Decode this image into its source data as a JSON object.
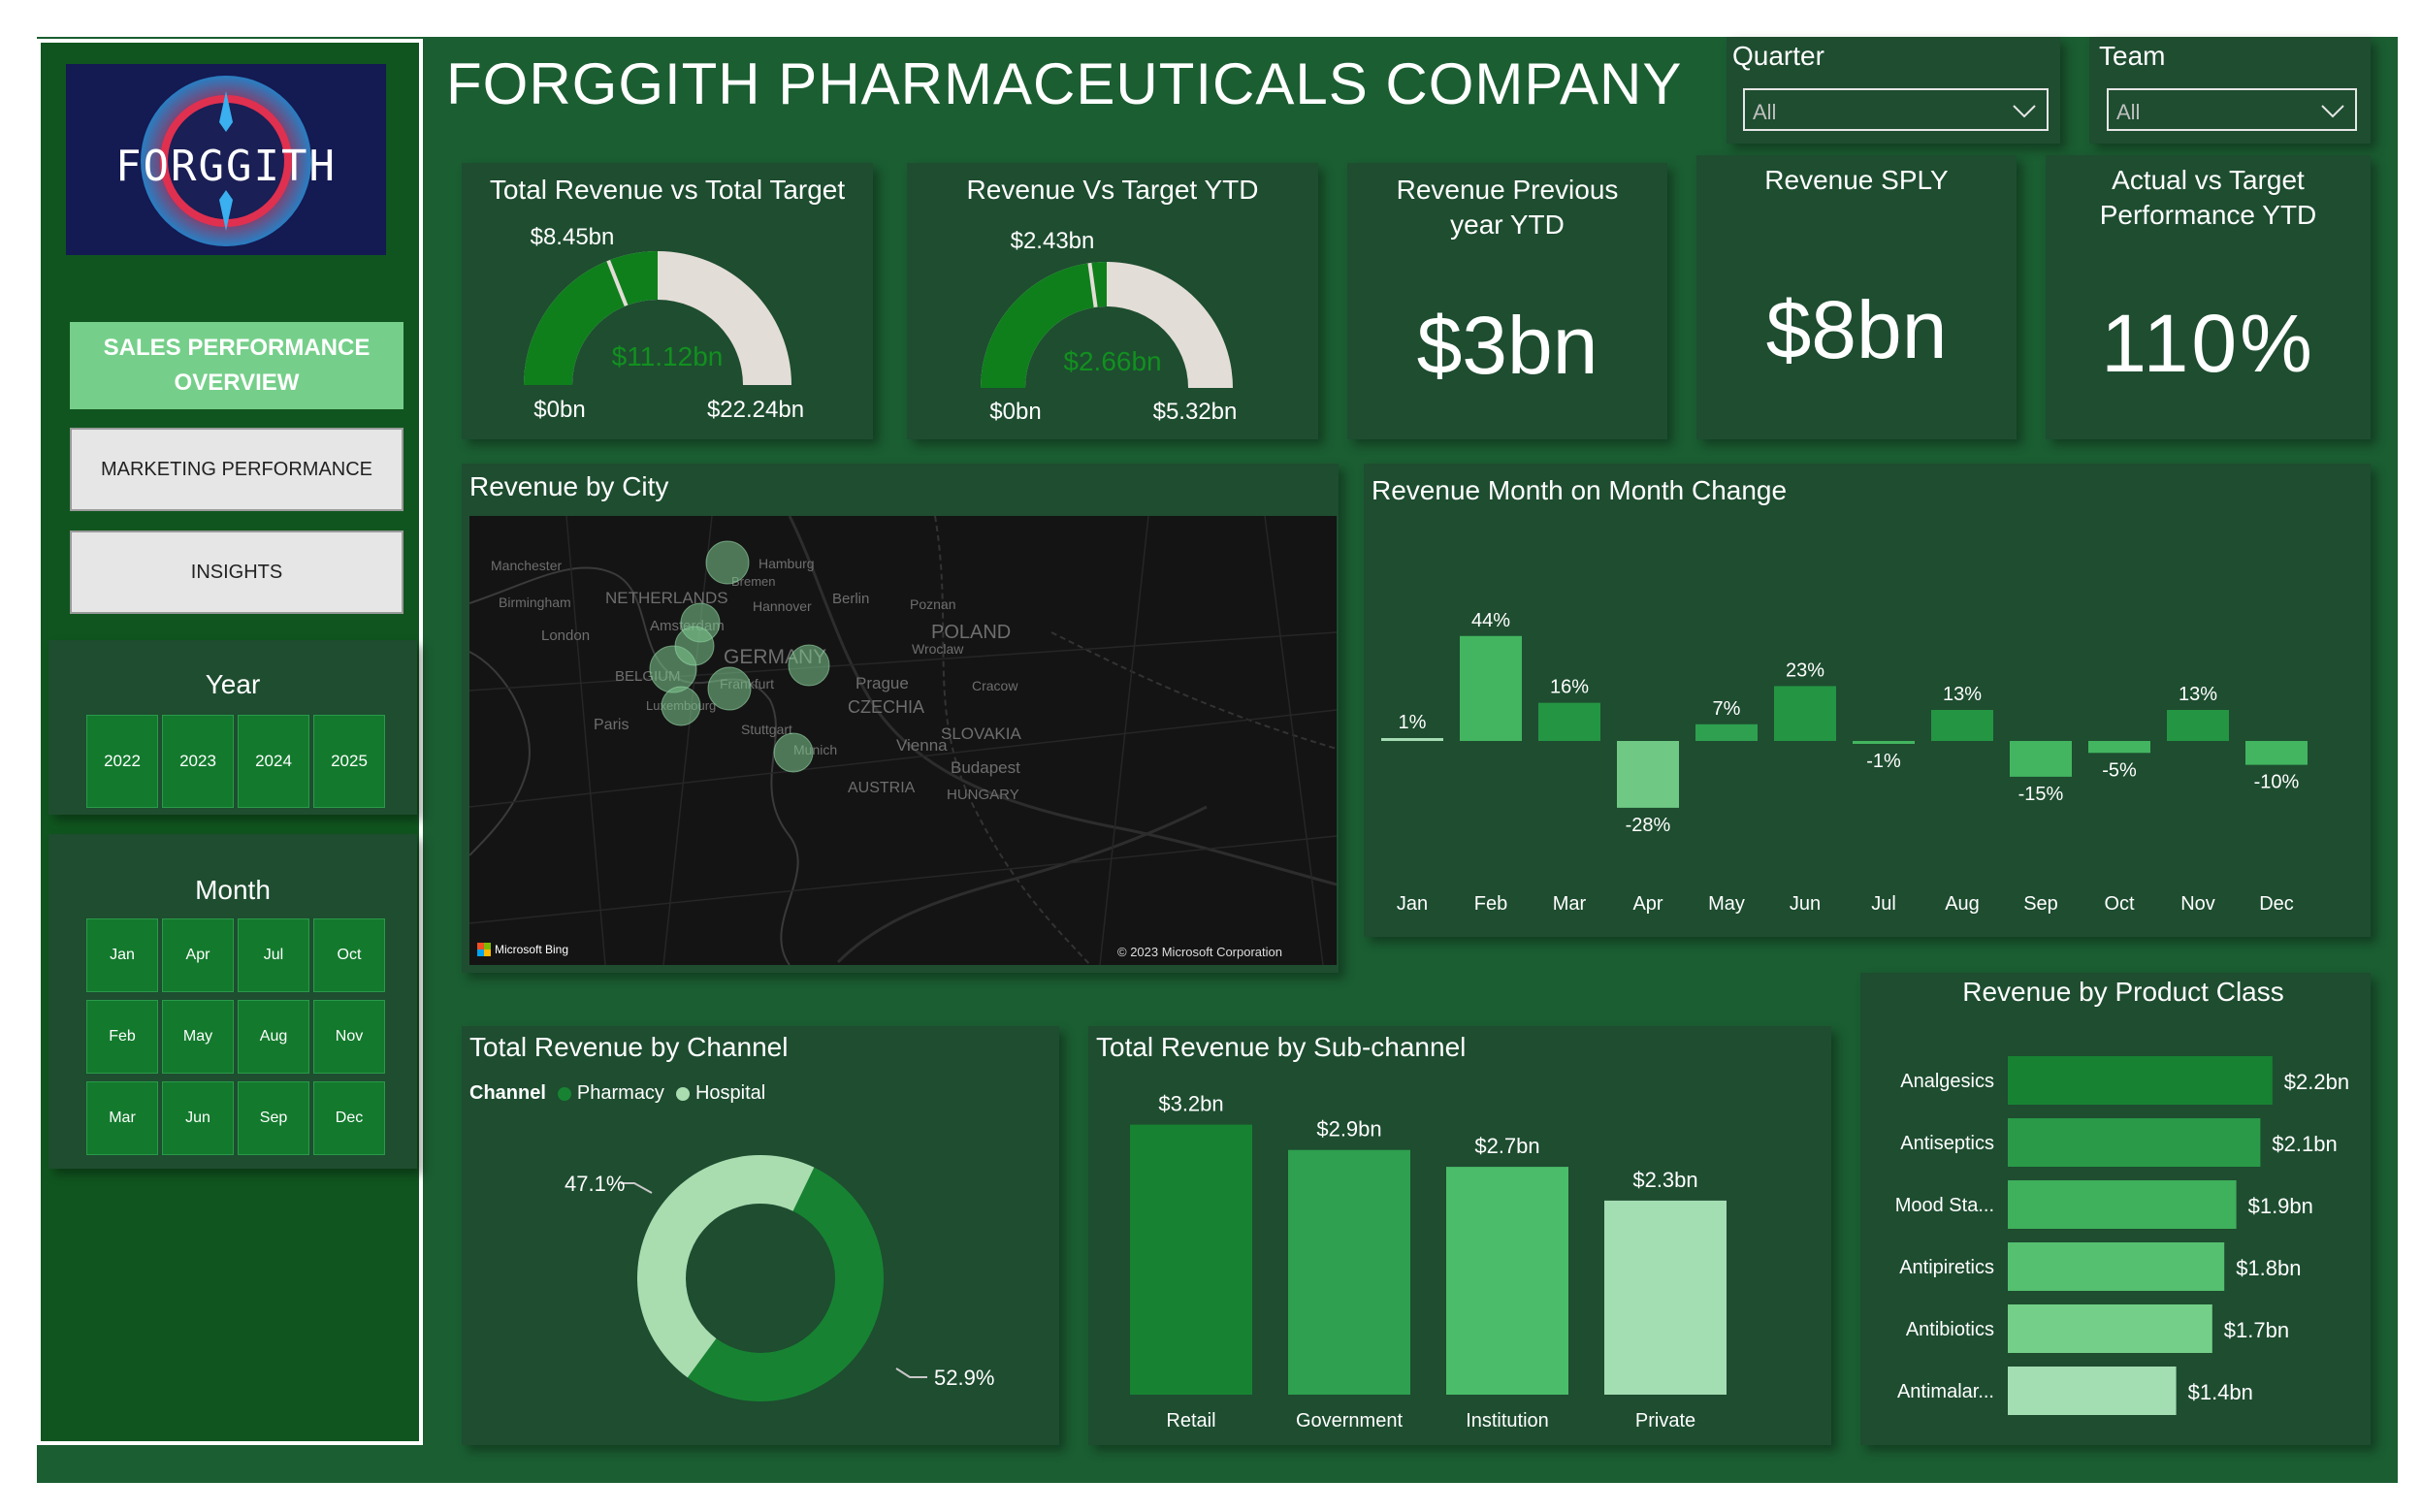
{
  "header": {
    "title": "FORGGITH PHARMACEUTICALS COMPANY"
  },
  "logo": {
    "text": "FORGGITH"
  },
  "nav": {
    "items": [
      {
        "label": "SALES PERFORMANCE OVERVIEW",
        "active": true
      },
      {
        "label": "MARKETING PERFORMANCE",
        "active": false
      },
      {
        "label": "INSIGHTS",
        "active": false
      }
    ]
  },
  "filters": {
    "quarter": {
      "label": "Quarter",
      "value": "All"
    },
    "team": {
      "label": "Team",
      "value": "All"
    }
  },
  "year_slicer": {
    "title": "Year",
    "options": [
      "2022",
      "2023",
      "2024",
      "2025"
    ]
  },
  "month_slicer": {
    "title": "Month",
    "options": [
      "Jan",
      "Apr",
      "Jul",
      "Oct",
      "Feb",
      "May",
      "Aug",
      "Nov",
      "Mar",
      "Jun",
      "Sep",
      "Dec"
    ]
  },
  "gauges": [
    {
      "title": "Total Revenue vs Total Target",
      "value_label": "$11.12bn",
      "target_label": "$8.45bn",
      "min_label": "$0bn",
      "max_label": "$22.24bn",
      "value": 11.12,
      "target": 8.45,
      "max": 22.24
    },
    {
      "title": "Revenue Vs Target YTD",
      "value_label": "$2.66bn",
      "target_label": "$2.43bn",
      "min_label": "$0bn",
      "max_label": "$5.32bn",
      "value": 2.66,
      "target": 2.43,
      "max": 5.32
    }
  ],
  "kpis": [
    {
      "title": "Revenue Previous year YTD",
      "value": "$3bn"
    },
    {
      "title": "Revenue SPLY",
      "value": "$8bn"
    },
    {
      "title": "Actual vs Target Performance YTD",
      "value": "110%"
    }
  ],
  "map": {
    "title": "Revenue by City",
    "attribution_left": "Microsoft Bing",
    "attribution_right": "© 2023 Microsoft Corporation",
    "labels": [
      "Manchester",
      "NETHERLANDS",
      "Birmingham",
      "Amsterdam",
      "Hamburg",
      "Bremen",
      "Hannover",
      "Berlin",
      "Poznan",
      "POLAND",
      "London",
      "GERMANY",
      "BELGIUM",
      "Wroclaw",
      "Prague",
      "CZECHIA",
      "Paris",
      "Stuttgart",
      "SLOVAKIA",
      "Vienna",
      "Budapest",
      "AUSTRIA",
      "HUNGARY",
      "Munich",
      "Frankfurt",
      "Luxembourg",
      "Cracow"
    ]
  },
  "chart_data": [
    {
      "type": "bar",
      "title": "Revenue Month on Month Change",
      "categories": [
        "Jan",
        "Feb",
        "Mar",
        "Apr",
        "May",
        "Jun",
        "Jul",
        "Aug",
        "Sep",
        "Oct",
        "Nov",
        "Dec"
      ],
      "values": [
        1,
        44,
        16,
        -28,
        7,
        23,
        -1,
        13,
        -15,
        -5,
        13,
        -10
      ],
      "labels": [
        "1%",
        "44%",
        "16%",
        "-28%",
        "7%",
        "23%",
        "-1%",
        "13%",
        "-15%",
        "-5%",
        "13%",
        "-10%"
      ]
    },
    {
      "type": "pie",
      "title": "Total Revenue by Channel",
      "legend_title": "Channel",
      "categories": [
        "Pharmacy",
        "Hospital"
      ],
      "values": [
        52.9,
        47.1
      ],
      "labels": [
        "52.9%",
        "47.1%"
      ],
      "colors": [
        "#178332",
        "#a9ddb0"
      ]
    },
    {
      "type": "bar",
      "title": "Total Revenue by Sub-channel",
      "categories": [
        "Retail",
        "Government",
        "Institution",
        "Private"
      ],
      "values": [
        3.2,
        2.9,
        2.7,
        2.3
      ],
      "labels": [
        "$3.2bn",
        "$2.9bn",
        "$2.7bn",
        "$2.3bn"
      ],
      "colors": [
        "#178332",
        "#2ea04f",
        "#4bbd6a",
        "#a3ddb2"
      ]
    },
    {
      "type": "bar",
      "title": "Revenue by Product Class",
      "orientation": "horizontal",
      "categories": [
        "Analgesics",
        "Antiseptics",
        "Mood Sta...",
        "Antipiretics",
        "Antibiotics",
        "Antimalar..."
      ],
      "values": [
        2.2,
        2.1,
        1.9,
        1.8,
        1.7,
        1.4
      ],
      "labels": [
        "$2.2bn",
        "$2.1bn",
        "$1.9bn",
        "$1.8bn",
        "$1.7bn",
        "$1.4bn"
      ],
      "colors": [
        "#178332",
        "#2a9a48",
        "#3fb05c",
        "#55c06f",
        "#74cf88",
        "#a3ddb2"
      ]
    }
  ]
}
